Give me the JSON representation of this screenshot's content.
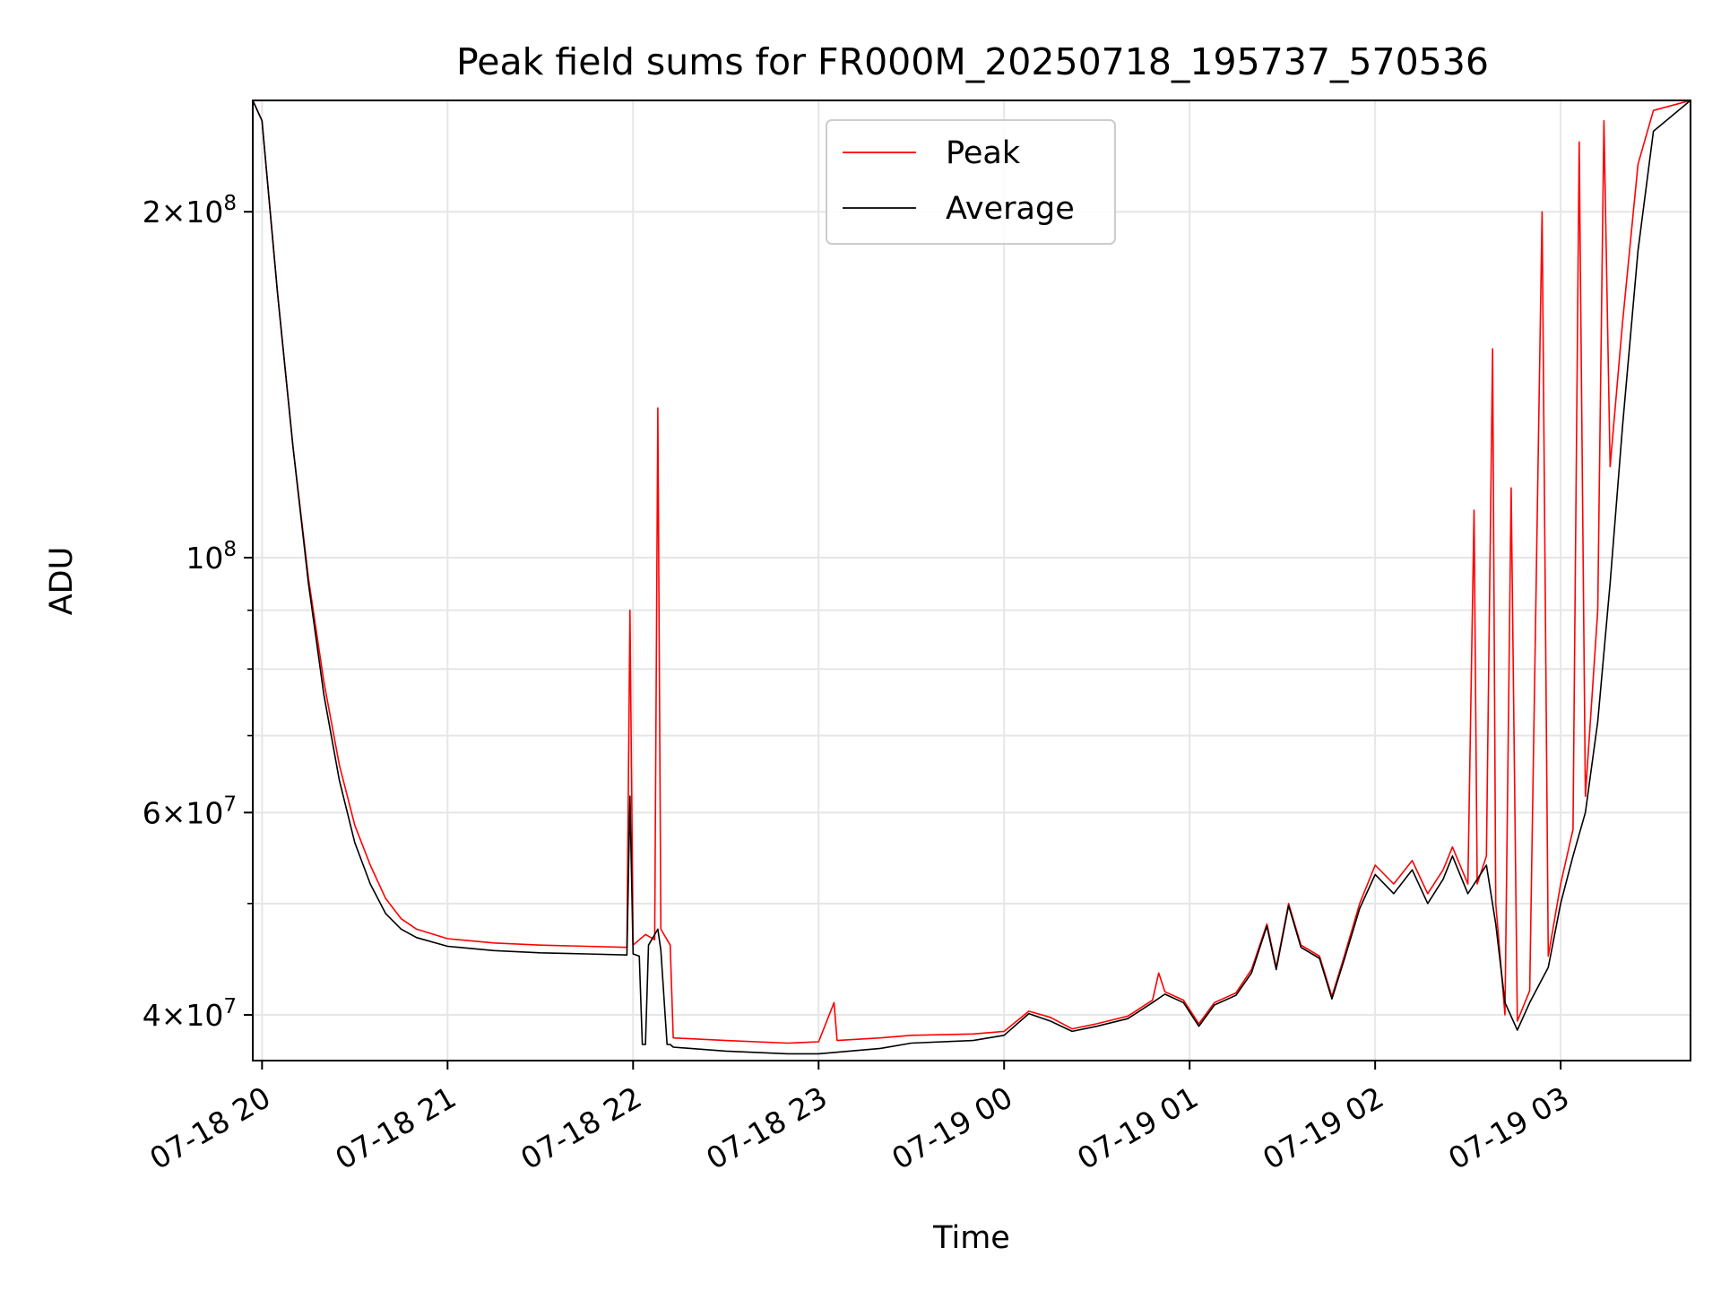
{
  "chart_data": {
    "type": "line",
    "title": "Peak field sums for FR000M_20250718_195737_570536",
    "xlabel": "Time",
    "ylabel": "ADU",
    "yscale": "log",
    "grid": true,
    "legend_position": "top-center",
    "x_range": [
      "2025-07-18 19:57",
      "2025-07-19 03:42"
    ],
    "ylim": [
      36500000,
      250000000
    ],
    "x_ticks": [
      {
        "time": "2025-07-18 20:00",
        "label": "07-18 20"
      },
      {
        "time": "2025-07-18 21:00",
        "label": "07-18 21"
      },
      {
        "time": "2025-07-18 22:00",
        "label": "07-18 22"
      },
      {
        "time": "2025-07-18 23:00",
        "label": "07-18 23"
      },
      {
        "time": "2025-07-19 00:00",
        "label": "07-19 00"
      },
      {
        "time": "2025-07-19 01:00",
        "label": "07-19 01"
      },
      {
        "time": "2025-07-19 02:00",
        "label": "07-19 02"
      },
      {
        "time": "2025-07-19 03:00",
        "label": "07-19 03"
      }
    ],
    "y_ticks": [
      {
        "value": 40000000,
        "base": "4",
        "exp": "7"
      },
      {
        "value": 60000000,
        "base": "6",
        "exp": "7"
      },
      {
        "value": 100000000,
        "base": "",
        "exp": "8"
      },
      {
        "value": 200000000,
        "base": "2",
        "exp": "8"
      }
    ],
    "y_minor_ticks": [
      50000000,
      70000000,
      80000000,
      90000000
    ],
    "series": [
      {
        "name": "Peak",
        "color": "#ff0000",
        "points": [
          [
            "2025-07-18 19:57",
            250000000
          ],
          [
            "2025-07-18 20:00",
            240000000
          ],
          [
            "2025-07-18 20:05",
            170000000
          ],
          [
            "2025-07-18 20:10",
            125000000
          ],
          [
            "2025-07-18 20:15",
            96000000
          ],
          [
            "2025-07-18 20:20",
            78000000
          ],
          [
            "2025-07-18 20:25",
            66000000
          ],
          [
            "2025-07-18 20:30",
            58500000
          ],
          [
            "2025-07-18 20:35",
            54000000
          ],
          [
            "2025-07-18 20:40",
            50500000
          ],
          [
            "2025-07-18 20:45",
            48500000
          ],
          [
            "2025-07-18 20:50",
            47500000
          ],
          [
            "2025-07-18 21:00",
            46600000
          ],
          [
            "2025-07-18 21:15",
            46200000
          ],
          [
            "2025-07-18 21:30",
            46000000
          ],
          [
            "2025-07-18 21:45",
            45900000
          ],
          [
            "2025-07-18 21:58",
            45800000
          ],
          [
            "2025-07-18 21:59",
            90000000
          ],
          [
            "2025-07-18 22:00",
            46000000
          ],
          [
            "2025-07-18 22:04",
            47000000
          ],
          [
            "2025-07-18 22:07",
            46500000
          ],
          [
            "2025-07-18 22:08",
            135000000
          ],
          [
            "2025-07-18 22:09",
            47500000
          ],
          [
            "2025-07-18 22:12",
            46000000
          ],
          [
            "2025-07-18 22:13",
            38200000
          ],
          [
            "2025-07-18 22:30",
            38000000
          ],
          [
            "2025-07-18 22:50",
            37800000
          ],
          [
            "2025-07-18 23:00",
            37900000
          ],
          [
            "2025-07-18 23:05",
            41000000
          ],
          [
            "2025-07-18 23:06",
            38000000
          ],
          [
            "2025-07-18 23:20",
            38200000
          ],
          [
            "2025-07-18 23:30",
            38400000
          ],
          [
            "2025-07-18 23:50",
            38500000
          ],
          [
            "2025-07-19 00:00",
            38700000
          ],
          [
            "2025-07-19 00:08",
            40300000
          ],
          [
            "2025-07-19 00:15",
            39800000
          ],
          [
            "2025-07-19 00:22",
            38900000
          ],
          [
            "2025-07-19 00:30",
            39300000
          ],
          [
            "2025-07-19 00:40",
            39900000
          ],
          [
            "2025-07-19 00:48",
            41200000
          ],
          [
            "2025-07-19 00:50",
            43500000
          ],
          [
            "2025-07-19 00:52",
            41900000
          ],
          [
            "2025-07-19 00:58",
            41200000
          ],
          [
            "2025-07-19 01:03",
            39300000
          ],
          [
            "2025-07-19 01:08",
            41000000
          ],
          [
            "2025-07-19 01:15",
            41800000
          ],
          [
            "2025-07-19 01:20",
            43800000
          ],
          [
            "2025-07-19 01:25",
            48000000
          ],
          [
            "2025-07-19 01:28",
            44000000
          ],
          [
            "2025-07-19 01:32",
            50000000
          ],
          [
            "2025-07-19 01:36",
            46000000
          ],
          [
            "2025-07-19 01:42",
            45000000
          ],
          [
            "2025-07-19 01:46",
            41500000
          ],
          [
            "2025-07-19 01:50",
            45000000
          ],
          [
            "2025-07-19 01:55",
            50000000
          ],
          [
            "2025-07-19 02:00",
            54000000
          ],
          [
            "2025-07-19 02:06",
            52000000
          ],
          [
            "2025-07-19 02:12",
            54500000
          ],
          [
            "2025-07-19 02:17",
            51000000
          ],
          [
            "2025-07-19 02:22",
            53500000
          ],
          [
            "2025-07-19 02:25",
            56000000
          ],
          [
            "2025-07-19 02:30",
            52000000
          ],
          [
            "2025-07-19 02:32",
            110000000
          ],
          [
            "2025-07-19 02:33",
            52000000
          ],
          [
            "2025-07-19 02:36",
            55000000
          ],
          [
            "2025-07-19 02:38",
            152000000
          ],
          [
            "2025-07-19 02:39",
            50000000
          ],
          [
            "2025-07-19 02:42",
            40000000
          ],
          [
            "2025-07-19 02:44",
            115000000
          ],
          [
            "2025-07-19 02:46",
            39500000
          ],
          [
            "2025-07-19 02:50",
            42000000
          ],
          [
            "2025-07-19 02:54",
            200000000
          ],
          [
            "2025-07-19 02:56",
            45000000
          ],
          [
            "2025-07-19 03:00",
            52000000
          ],
          [
            "2025-07-19 03:04",
            58000000
          ],
          [
            "2025-07-19 03:06",
            230000000
          ],
          [
            "2025-07-19 03:08",
            62000000
          ],
          [
            "2025-07-19 03:12",
            90000000
          ],
          [
            "2025-07-19 03:14",
            240000000
          ],
          [
            "2025-07-19 03:16",
            120000000
          ],
          [
            "2025-07-19 03:20",
            160000000
          ],
          [
            "2025-07-19 03:25",
            220000000
          ],
          [
            "2025-07-19 03:30",
            245000000
          ],
          [
            "2025-07-19 03:42",
            250000000
          ]
        ]
      },
      {
        "name": "Average",
        "color": "#000000",
        "points": [
          [
            "2025-07-18 19:57",
            250000000
          ],
          [
            "2025-07-18 20:00",
            240000000
          ],
          [
            "2025-07-18 20:05",
            170000000
          ],
          [
            "2025-07-18 20:10",
            125000000
          ],
          [
            "2025-07-18 20:15",
            95000000
          ],
          [
            "2025-07-18 20:20",
            76000000
          ],
          [
            "2025-07-18 20:25",
            64000000
          ],
          [
            "2025-07-18 20:30",
            56500000
          ],
          [
            "2025-07-18 20:35",
            52000000
          ],
          [
            "2025-07-18 20:40",
            49000000
          ],
          [
            "2025-07-18 20:45",
            47500000
          ],
          [
            "2025-07-18 20:50",
            46700000
          ],
          [
            "2025-07-18 21:00",
            45900000
          ],
          [
            "2025-07-18 21:15",
            45500000
          ],
          [
            "2025-07-18 21:30",
            45300000
          ],
          [
            "2025-07-18 21:45",
            45200000
          ],
          [
            "2025-07-18 21:58",
            45100000
          ],
          [
            "2025-07-18 21:59",
            62000000
          ],
          [
            "2025-07-18 22:00",
            45200000
          ],
          [
            "2025-07-18 22:02",
            45000000
          ],
          [
            "2025-07-18 22:03",
            37700000
          ],
          [
            "2025-07-18 22:04",
            37700000
          ],
          [
            "2025-07-18 22:05",
            46000000
          ],
          [
            "2025-07-18 22:08",
            47500000
          ],
          [
            "2025-07-18 22:09",
            45500000
          ],
          [
            "2025-07-18 22:11",
            37700000
          ],
          [
            "2025-07-18 22:12",
            37700000
          ],
          [
            "2025-07-18 22:13",
            37500000
          ],
          [
            "2025-07-18 22:30",
            37200000
          ],
          [
            "2025-07-18 22:50",
            37000000
          ],
          [
            "2025-07-18 23:00",
            37000000
          ],
          [
            "2025-07-18 23:20",
            37400000
          ],
          [
            "2025-07-18 23:30",
            37800000
          ],
          [
            "2025-07-18 23:50",
            38000000
          ],
          [
            "2025-07-19 00:00",
            38400000
          ],
          [
            "2025-07-19 00:08",
            40100000
          ],
          [
            "2025-07-19 00:15",
            39500000
          ],
          [
            "2025-07-19 00:22",
            38700000
          ],
          [
            "2025-07-19 00:30",
            39100000
          ],
          [
            "2025-07-19 00:40",
            39700000
          ],
          [
            "2025-07-19 00:48",
            41000000
          ],
          [
            "2025-07-19 00:52",
            41700000
          ],
          [
            "2025-07-19 00:58",
            41000000
          ],
          [
            "2025-07-19 01:03",
            39100000
          ],
          [
            "2025-07-19 01:08",
            40800000
          ],
          [
            "2025-07-19 01:15",
            41600000
          ],
          [
            "2025-07-19 01:20",
            43500000
          ],
          [
            "2025-07-19 01:25",
            47800000
          ],
          [
            "2025-07-19 01:28",
            43800000
          ],
          [
            "2025-07-19 01:32",
            49800000
          ],
          [
            "2025-07-19 01:36",
            45800000
          ],
          [
            "2025-07-19 01:42",
            44800000
          ],
          [
            "2025-07-19 01:46",
            41300000
          ],
          [
            "2025-07-19 01:50",
            44700000
          ],
          [
            "2025-07-19 01:55",
            49500000
          ],
          [
            "2025-07-19 02:00",
            53000000
          ],
          [
            "2025-07-19 02:06",
            51000000
          ],
          [
            "2025-07-19 02:12",
            53500000
          ],
          [
            "2025-07-19 02:17",
            50000000
          ],
          [
            "2025-07-19 02:22",
            52500000
          ],
          [
            "2025-07-19 02:25",
            55000000
          ],
          [
            "2025-07-19 02:30",
            51000000
          ],
          [
            "2025-07-19 02:36",
            54000000
          ],
          [
            "2025-07-19 02:39",
            48000000
          ],
          [
            "2025-07-19 02:42",
            41000000
          ],
          [
            "2025-07-19 02:46",
            38800000
          ],
          [
            "2025-07-19 02:50",
            41000000
          ],
          [
            "2025-07-19 02:56",
            44000000
          ],
          [
            "2025-07-19 03:00",
            50000000
          ],
          [
            "2025-07-19 03:04",
            55000000
          ],
          [
            "2025-07-19 03:08",
            60000000
          ],
          [
            "2025-07-19 03:12",
            72000000
          ],
          [
            "2025-07-19 03:16",
            95000000
          ],
          [
            "2025-07-19 03:20",
            130000000
          ],
          [
            "2025-07-19 03:25",
            185000000
          ],
          [
            "2025-07-19 03:30",
            235000000
          ],
          [
            "2025-07-19 03:42",
            250000000
          ]
        ]
      }
    ]
  }
}
